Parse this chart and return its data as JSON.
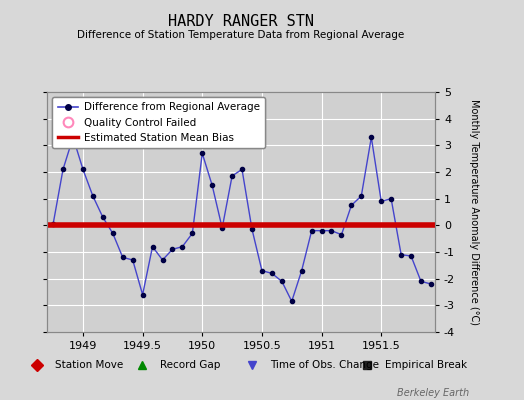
{
  "title": "HARDY RANGER STN",
  "subtitle": "Difference of Station Temperature Data from Regional Average",
  "ylabel_right": "Monthly Temperature Anomaly Difference (°C)",
  "bias": 0.0,
  "xlim": [
    1948.7,
    1951.95
  ],
  "ylim": [
    -4,
    5
  ],
  "yticks": [
    -4,
    -3,
    -2,
    -1,
    0,
    1,
    2,
    3,
    4,
    5
  ],
  "xticks": [
    1949,
    1949.5,
    1950,
    1950.5,
    1951,
    1951.5
  ],
  "xticklabels": [
    "1949",
    "1949.5",
    "1950",
    "1950.5",
    "1951",
    "1951.5"
  ],
  "background_color": "#d8d8d8",
  "plot_bg_color": "#d0d0d0",
  "grid_color": "#ffffff",
  "line_color": "#4444cc",
  "bias_color": "#cc0000",
  "marker_color": "#000044",
  "watermark": "Berkeley Earth",
  "x_data": [
    1948.75,
    1948.833,
    1948.917,
    1949.0,
    1949.083,
    1949.167,
    1949.25,
    1949.333,
    1949.417,
    1949.5,
    1949.583,
    1949.667,
    1949.75,
    1949.833,
    1949.917,
    1950.0,
    1950.083,
    1950.167,
    1950.25,
    1950.333,
    1950.417,
    1950.5,
    1950.583,
    1950.667,
    1950.75,
    1950.833,
    1950.917,
    1951.0,
    1951.083,
    1951.167,
    1951.25,
    1951.333,
    1951.417,
    1951.5,
    1951.583,
    1951.667,
    1951.75,
    1951.833,
    1951.917
  ],
  "y_data": [
    0.05,
    2.1,
    3.3,
    2.1,
    1.1,
    0.3,
    -0.3,
    -1.2,
    -1.3,
    -2.6,
    -0.8,
    -1.3,
    -0.9,
    -0.8,
    -0.3,
    2.7,
    1.5,
    -0.1,
    1.85,
    2.1,
    -0.15,
    -1.7,
    -1.8,
    -2.1,
    -2.85,
    -1.7,
    -0.2,
    -0.2,
    -0.2,
    -0.35,
    0.75,
    1.1,
    3.3,
    0.9,
    1.0,
    -1.1,
    -1.15,
    -2.1,
    -2.2
  ],
  "legend1_label": "Difference from Regional Average",
  "legend2_label": "Quality Control Failed",
  "legend3_label": "Estimated Station Mean Bias",
  "bottom_legend": [
    "Station Move",
    "Record Gap",
    "Time of Obs. Change",
    "Empirical Break"
  ],
  "bottom_legend_colors": [
    "#cc0000",
    "#008800",
    "#4444cc",
    "#222222"
  ],
  "bottom_legend_markers": [
    "D",
    "^",
    "v",
    "s"
  ]
}
